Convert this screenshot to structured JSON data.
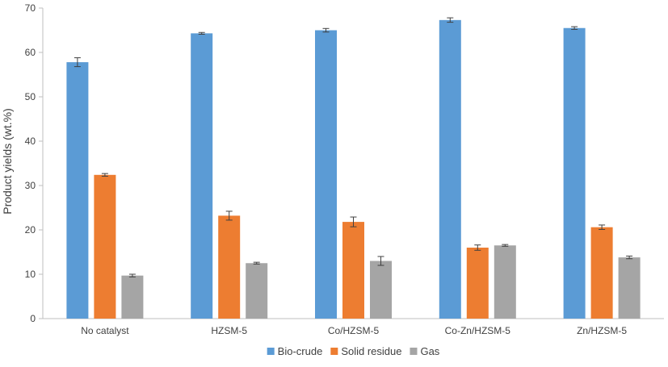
{
  "chart_data": {
    "type": "bar",
    "title": "",
    "xlabel": "",
    "ylabel": "Product yields (wt.%)",
    "ylim": [
      0,
      70
    ],
    "yticks": [
      0,
      10,
      20,
      30,
      40,
      50,
      60,
      70
    ],
    "grid": false,
    "legend_position": "bottom",
    "categories": [
      "No catalyst",
      "HZSM-5",
      "Co/HZSM-5",
      "Co-Zn/HZSM-5",
      "Zn/HZSM-5"
    ],
    "series": [
      {
        "name": "Bio-crude",
        "color": "#5B9BD5",
        "values": [
          57.8,
          64.3,
          65.0,
          67.3,
          65.5
        ],
        "errors": [
          1.0,
          0.2,
          0.4,
          0.5,
          0.3
        ]
      },
      {
        "name": "Solid residue",
        "color": "#ED7D31",
        "values": [
          32.4,
          23.2,
          21.8,
          16.0,
          20.6
        ],
        "errors": [
          0.3,
          1.0,
          1.1,
          0.6,
          0.5
        ]
      },
      {
        "name": "Gas",
        "color": "#A5A5A5",
        "values": [
          9.7,
          12.5,
          13.0,
          16.5,
          13.8
        ],
        "errors": [
          0.3,
          0.2,
          1.0,
          0.2,
          0.3
        ]
      }
    ]
  }
}
